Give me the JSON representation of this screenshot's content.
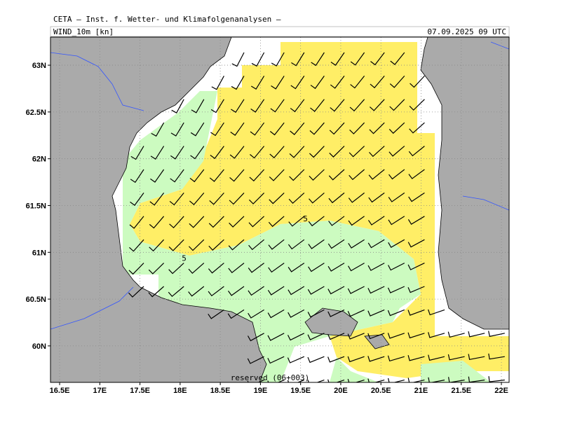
{
  "header": {
    "title": "CETA — Inst. f. Wetter- und Klimafolgenanalysen —",
    "variable": "WIND_10m [kn]",
    "time": "07.09.2025 09 UTC"
  },
  "map": {
    "lonlim": [
      16.386,
      22.096
    ],
    "latlim": [
      59.61,
      63.3
    ],
    "lon_ticks": [
      {
        "value": 16.5,
        "label": "16.5E"
      },
      {
        "value": 17,
        "label": "17E"
      },
      {
        "value": 17.5,
        "label": "17.5E"
      },
      {
        "value": 18,
        "label": "18E"
      },
      {
        "value": 18.5,
        "label": "18.5E"
      },
      {
        "value": 19,
        "label": "19E"
      },
      {
        "value": 19.5,
        "label": "19.5E"
      },
      {
        "value": 20,
        "label": "20E"
      },
      {
        "value": 20.5,
        "label": "20.5E"
      },
      {
        "value": 21,
        "label": "21E"
      },
      {
        "value": 21.5,
        "label": "21.5E"
      },
      {
        "value": 22,
        "label": "22E"
      }
    ],
    "lat_ticks": [
      {
        "value": 60,
        "label": "60N"
      },
      {
        "value": 60.5,
        "label": "60.5N"
      },
      {
        "value": 61,
        "label": "61N"
      },
      {
        "value": 61.5,
        "label": "61.5N"
      },
      {
        "value": 62,
        "label": "62N"
      },
      {
        "value": 62.5,
        "label": "62.5N"
      },
      {
        "value": 63,
        "label": "63N"
      }
    ],
    "contour_labels": [
      {
        "text": "5",
        "lon": 19.56,
        "lat": 61.36
      },
      {
        "text": "5",
        "lon": 18.05,
        "lat": 60.94
      }
    ],
    "footer": "reserved (06+003)"
  }
}
